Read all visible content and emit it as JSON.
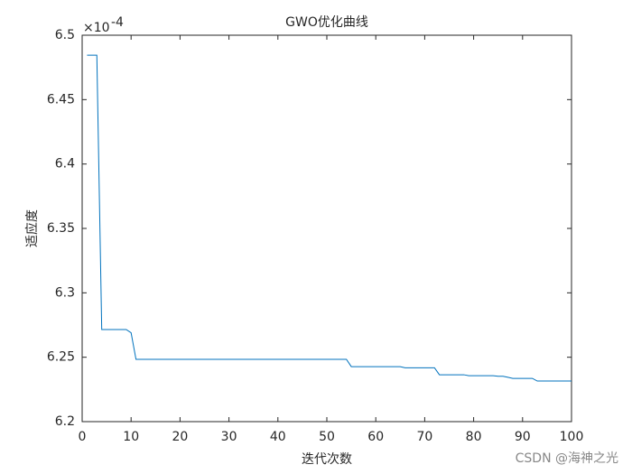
{
  "chart_data": {
    "type": "line",
    "title": "GWO优化曲线",
    "x_label": "迭代次数",
    "y_label": "适应度",
    "y_exponent": {
      "base": "×10",
      "power": "-4"
    },
    "watermark": "CSDN @海神之光",
    "x": [
      1,
      2,
      3,
      4,
      5,
      6,
      7,
      8,
      9,
      10,
      11,
      12,
      13,
      14,
      15,
      16,
      17,
      18,
      19,
      20,
      21,
      22,
      23,
      24,
      25,
      26,
      27,
      28,
      29,
      30,
      31,
      32,
      33,
      34,
      35,
      36,
      37,
      38,
      39,
      40,
      41,
      42,
      43,
      44,
      45,
      46,
      47,
      48,
      49,
      50,
      51,
      52,
      53,
      54,
      55,
      56,
      57,
      58,
      59,
      60,
      61,
      62,
      63,
      64,
      65,
      66,
      67,
      68,
      69,
      70,
      71,
      72,
      73,
      74,
      75,
      76,
      77,
      78,
      79,
      80,
      81,
      82,
      83,
      84,
      85,
      86,
      87,
      88,
      89,
      90,
      91,
      92,
      93,
      94,
      95,
      96,
      97,
      98,
      99,
      100
    ],
    "series": [
      {
        "color": "#0072bd",
        "values": [
          6.4845,
          6.4845,
          6.4845,
          6.2715,
          6.2715,
          6.2715,
          6.2715,
          6.2715,
          6.2715,
          6.269,
          6.2484,
          6.2484,
          6.2484,
          6.2484,
          6.2484,
          6.2484,
          6.2484,
          6.2484,
          6.2484,
          6.2484,
          6.2484,
          6.2484,
          6.2484,
          6.2484,
          6.2484,
          6.2484,
          6.2484,
          6.2484,
          6.2484,
          6.2484,
          6.2484,
          6.2484,
          6.2484,
          6.2484,
          6.2484,
          6.2484,
          6.2484,
          6.2484,
          6.2484,
          6.2484,
          6.2484,
          6.2484,
          6.2484,
          6.2484,
          6.2484,
          6.2484,
          6.2484,
          6.2484,
          6.2484,
          6.2484,
          6.2484,
          6.2484,
          6.2484,
          6.2484,
          6.2427,
          6.2427,
          6.2427,
          6.2427,
          6.2427,
          6.2427,
          6.2427,
          6.2427,
          6.2427,
          6.2427,
          6.2427,
          6.2418,
          6.2418,
          6.2418,
          6.2418,
          6.2418,
          6.2418,
          6.2418,
          6.2364,
          6.2364,
          6.2364,
          6.2364,
          6.2364,
          6.2364,
          6.2357,
          6.2357,
          6.2357,
          6.2357,
          6.2357,
          6.2357,
          6.2352,
          6.2352,
          6.2344,
          6.2336,
          6.2336,
          6.2336,
          6.2336,
          6.2336,
          6.2315,
          6.2315,
          6.2315,
          6.2315,
          6.2315,
          6.2315,
          6.2315,
          6.2315
        ]
      }
    ],
    "xlim": [
      0,
      100
    ],
    "xticks": [
      0,
      10,
      20,
      30,
      40,
      50,
      60,
      70,
      80,
      90,
      100
    ],
    "ylim": [
      6.2,
      6.5
    ],
    "yticks": [
      6.2,
      6.25,
      6.3,
      6.35,
      6.4,
      6.45,
      6.5
    ]
  }
}
